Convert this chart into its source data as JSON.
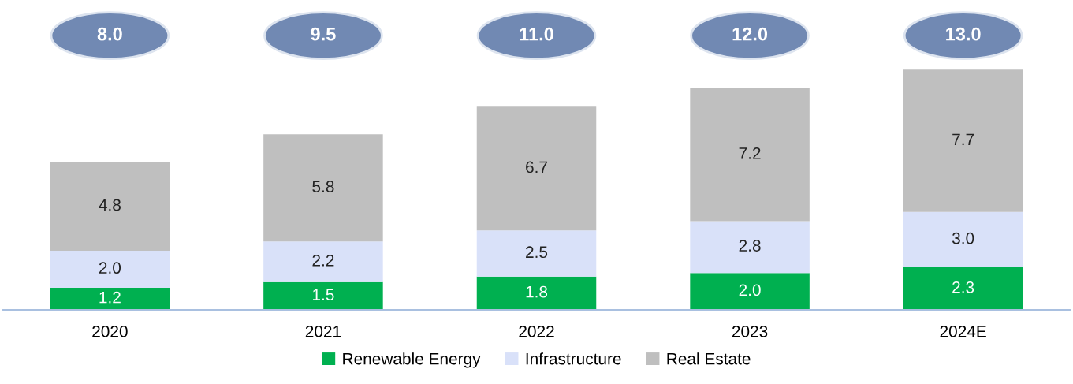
{
  "chart_data": {
    "type": "bar",
    "stacked": true,
    "categories": [
      "2020",
      "2021",
      "2022",
      "2023",
      "2024E"
    ],
    "series": [
      {
        "name": "Renewable Energy",
        "color": "#00b050",
        "values": [
          1.2,
          1.5,
          1.8,
          2.0,
          2.3
        ],
        "value_labels": [
          "1.2",
          "1.5",
          "1.8",
          "2.0",
          "2.3"
        ]
      },
      {
        "name": "Infrastructure",
        "color": "#d9e1f9",
        "values": [
          2.0,
          2.2,
          2.5,
          2.8,
          3.0
        ],
        "value_labels": [
          "2.0",
          "2.2",
          "2.5",
          "2.8",
          "3.0"
        ]
      },
      {
        "name": "Real Estate",
        "color": "#bfbfbf",
        "values": [
          4.8,
          5.8,
          6.7,
          7.2,
          7.7
        ],
        "value_labels": [
          "4.8",
          "5.8",
          "6.7",
          "7.2",
          "7.7"
        ]
      }
    ],
    "annotations": [
      "8.0",
      "9.5",
      "11.0",
      "12.0",
      "13.0"
    ],
    "legend": "bottom",
    "tick_labels": "x",
    "grid": false
  }
}
